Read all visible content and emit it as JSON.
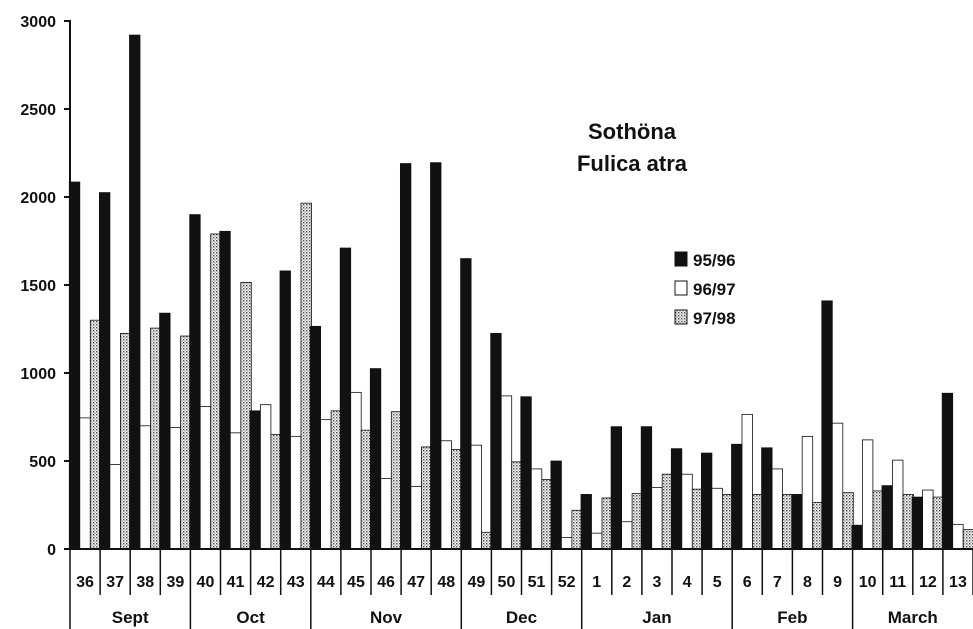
{
  "chart_data": {
    "type": "bar",
    "title": "Sothöna",
    "subtitle": "Fulica atra",
    "ylim": [
      0,
      3000
    ],
    "yticks": [
      0,
      500,
      1000,
      1500,
      2000,
      2500,
      3000
    ],
    "grid": false,
    "legend_position": "right",
    "categories": [
      "36",
      "37",
      "38",
      "39",
      "40",
      "41",
      "42",
      "43",
      "44",
      "45",
      "46",
      "47",
      "48",
      "49",
      "50",
      "51",
      "52",
      "1",
      "2",
      "3",
      "4",
      "5",
      "6",
      "7",
      "8",
      "9",
      "10",
      "11",
      "12",
      "13"
    ],
    "months": [
      {
        "label": "Sept",
        "count": 4
      },
      {
        "label": "Oct",
        "count": 4
      },
      {
        "label": "Nov",
        "count": 5
      },
      {
        "label": "Dec",
        "count": 4
      },
      {
        "label": "Jan",
        "count": 5
      },
      {
        "label": "Feb",
        "count": 4
      },
      {
        "label": "March",
        "count": 4
      }
    ],
    "series": [
      {
        "name": "95/96",
        "fill": "#111111",
        "values": [
          2085,
          2025,
          2920,
          1340,
          1900,
          1805,
          785,
          1580,
          1265,
          1710,
          1025,
          2190,
          2195,
          1650,
          1225,
          865,
          500,
          310,
          695,
          695,
          570,
          545,
          595,
          575,
          310,
          1410,
          135,
          360,
          295,
          885
        ]
      },
      {
        "name": "96/97",
        "fill": "#ffffff",
        "values": [
          745,
          480,
          700,
          690,
          810,
          660,
          820,
          640,
          735,
          890,
          400,
          355,
          615,
          590,
          870,
          455,
          65,
          90,
          155,
          350,
          425,
          345,
          765,
          455,
          640,
          715,
          620,
          505,
          335,
          140
        ]
      },
      {
        "name": "97/98",
        "fill": "dots",
        "values": [
          1300,
          1225,
          1255,
          1210,
          1790,
          1515,
          650,
          1965,
          785,
          675,
          780,
          580,
          565,
          95,
          495,
          395,
          220,
          290,
          315,
          425,
          340,
          310,
          310,
          310,
          265,
          320,
          330,
          310,
          295,
          110
        ]
      }
    ]
  }
}
